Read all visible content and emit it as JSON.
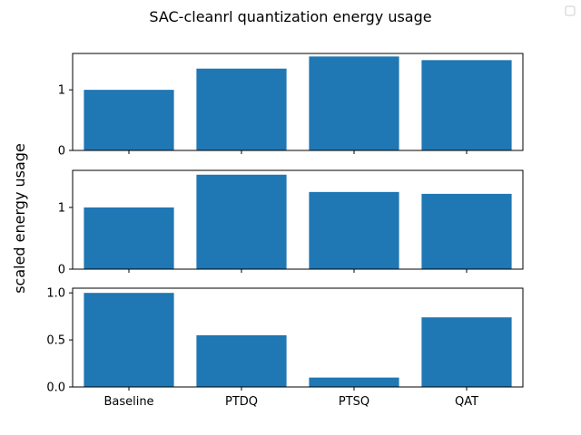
{
  "figure": {
    "title": "SAC-cleanrl quantization energy usage",
    "ylabel": "scaled energy usage",
    "bar_color": "#1f77b4"
  },
  "chart_data": [
    {
      "type": "bar",
      "categories": [
        "Baseline",
        "PTDQ",
        "PTSQ",
        "QAT"
      ],
      "values": [
        1.0,
        1.35,
        1.55,
        1.49
      ],
      "ylim": [
        0,
        1.6
      ],
      "yticks": [
        0,
        1
      ],
      "yticklabels": [
        "0",
        "1"
      ],
      "show_xticklabels": false,
      "grid": false
    },
    {
      "type": "bar",
      "categories": [
        "Baseline",
        "PTDQ",
        "PTSQ",
        "QAT"
      ],
      "values": [
        1.0,
        1.53,
        1.25,
        1.22
      ],
      "ylim": [
        0,
        1.6
      ],
      "yticks": [
        0,
        1
      ],
      "yticklabels": [
        "0",
        "1"
      ],
      "show_xticklabels": false,
      "grid": false
    },
    {
      "type": "bar",
      "categories": [
        "Baseline",
        "PTDQ",
        "PTSQ",
        "QAT"
      ],
      "values": [
        1.0,
        0.55,
        0.1,
        0.74
      ],
      "ylim": [
        0,
        1.05
      ],
      "yticks": [
        0,
        0.5,
        1.0
      ],
      "yticklabels": [
        "0.0",
        "0.5",
        "1.0"
      ],
      "show_xticklabels": true,
      "grid": false
    }
  ]
}
